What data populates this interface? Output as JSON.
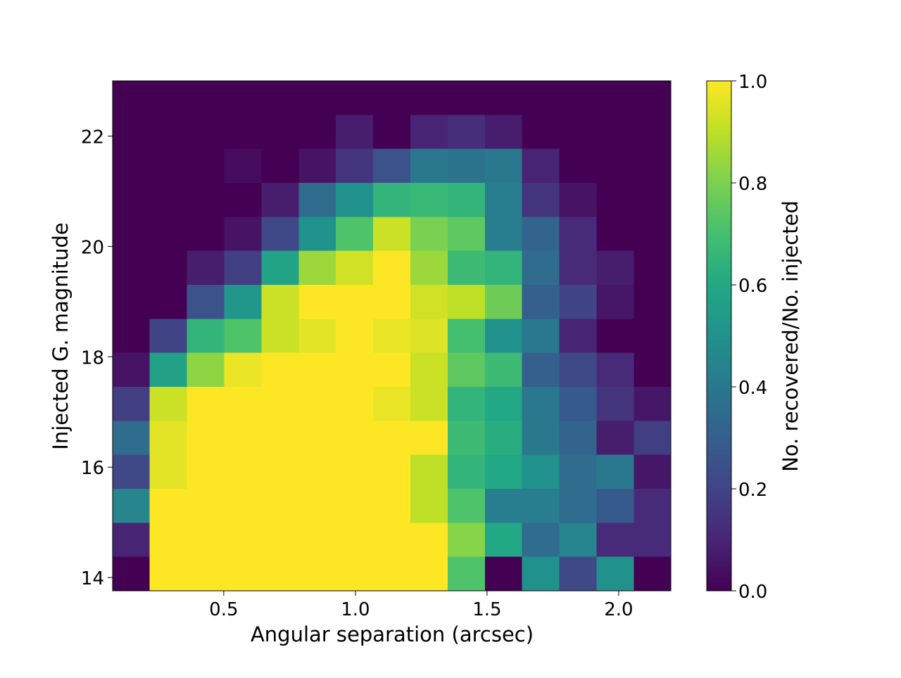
{
  "chart_data": {
    "type": "heatmap",
    "xlabel": "Angular separation (arcsec)",
    "ylabel": "Injected G. magnitude",
    "colorbar_label": "No. recovered/No. injected",
    "colormap": "viridis",
    "xlim": [
      0.078,
      2.198
    ],
    "ylim": [
      13.76,
      23.0
    ],
    "zlim": [
      0,
      1
    ],
    "x_edges": [
      0.078,
      0.219,
      0.36,
      0.502,
      0.643,
      0.785,
      0.926,
      1.067,
      1.209,
      1.35,
      1.492,
      1.633,
      1.774,
      1.916,
      2.057,
      2.198
    ],
    "y_edges": [
      23.0,
      22.384,
      21.768,
      21.152,
      20.536,
      19.92,
      19.304,
      18.688,
      18.072,
      17.456,
      16.84,
      16.224,
      15.608,
      14.992,
      14.376,
      13.76
    ],
    "z": [
      [
        0,
        0,
        0,
        0,
        0,
        0,
        0,
        0,
        0,
        0,
        0,
        0,
        0,
        0,
        0
      ],
      [
        0,
        0,
        0,
        0,
        0,
        0,
        0.08,
        0,
        0.1,
        0.13,
        0.08,
        0,
        0,
        0,
        0
      ],
      [
        0,
        0,
        0,
        0.03,
        0,
        0.05,
        0.15,
        0.25,
        0.4,
        0.38,
        0.4,
        0.1,
        0,
        0,
        0
      ],
      [
        0,
        0,
        0,
        0,
        0.08,
        0.35,
        0.5,
        0.65,
        0.67,
        0.65,
        0.42,
        0.15,
        0.05,
        0,
        0
      ],
      [
        0,
        0,
        0,
        0.05,
        0.22,
        0.5,
        0.72,
        0.92,
        0.8,
        0.75,
        0.42,
        0.32,
        0.12,
        0,
        0
      ],
      [
        0,
        0,
        0.08,
        0.18,
        0.58,
        0.85,
        0.93,
        1,
        0.85,
        0.68,
        0.65,
        0.35,
        0.12,
        0.08,
        0
      ],
      [
        0,
        0,
        0.25,
        0.52,
        0.92,
        1,
        1,
        1,
        0.93,
        0.9,
        0.78,
        0.3,
        0.2,
        0.06,
        0
      ],
      [
        0,
        0.2,
        0.65,
        0.72,
        0.92,
        0.96,
        1,
        0.97,
        0.95,
        0.7,
        0.5,
        0.4,
        0.1,
        0,
        0
      ],
      [
        0.05,
        0.57,
        0.83,
        0.97,
        1,
        1,
        1,
        1,
        0.92,
        0.75,
        0.68,
        0.3,
        0.22,
        0.12,
        0
      ],
      [
        0.18,
        0.92,
        1,
        1,
        1,
        1,
        1,
        0.97,
        0.92,
        0.65,
        0.6,
        0.4,
        0.28,
        0.15,
        0.06
      ],
      [
        0.35,
        0.96,
        1,
        1,
        1,
        1,
        1,
        1,
        1,
        0.68,
        0.62,
        0.4,
        0.32,
        0.08,
        0.18
      ],
      [
        0.22,
        0.96,
        1,
        1,
        1,
        1,
        1,
        1,
        0.9,
        0.65,
        0.6,
        0.5,
        0.35,
        0.4,
        0.06
      ],
      [
        0.45,
        1,
        1,
        1,
        1,
        1,
        1,
        1,
        0.9,
        0.72,
        0.42,
        0.42,
        0.35,
        0.28,
        0.12
      ],
      [
        0.1,
        1,
        1,
        1,
        1,
        1,
        1,
        1,
        1,
        0.82,
        0.6,
        0.35,
        0.45,
        0.12,
        0.12
      ],
      [
        0,
        1,
        1,
        1,
        1,
        1,
        1,
        1,
        1,
        0.72,
        0,
        0.5,
        0.22,
        0.5,
        0
      ]
    ],
    "xticks": [
      0.5,
      {
        "value": 1,
        "label": "1.0"
      },
      1.5,
      {
        "value": 2,
        "label": "2.0"
      }
    ],
    "yticks": [
      14,
      16,
      18,
      20,
      22
    ],
    "zticks": [
      {
        "value": 0,
        "label": "0.0"
      },
      {
        "value": 0.2,
        "label": "0.2"
      },
      {
        "value": 0.4,
        "label": "0.4"
      },
      {
        "value": 0.6,
        "label": "0.6"
      },
      {
        "value": 0.8,
        "label": "0.8"
      },
      {
        "value": 1,
        "label": "1.0"
      }
    ]
  }
}
